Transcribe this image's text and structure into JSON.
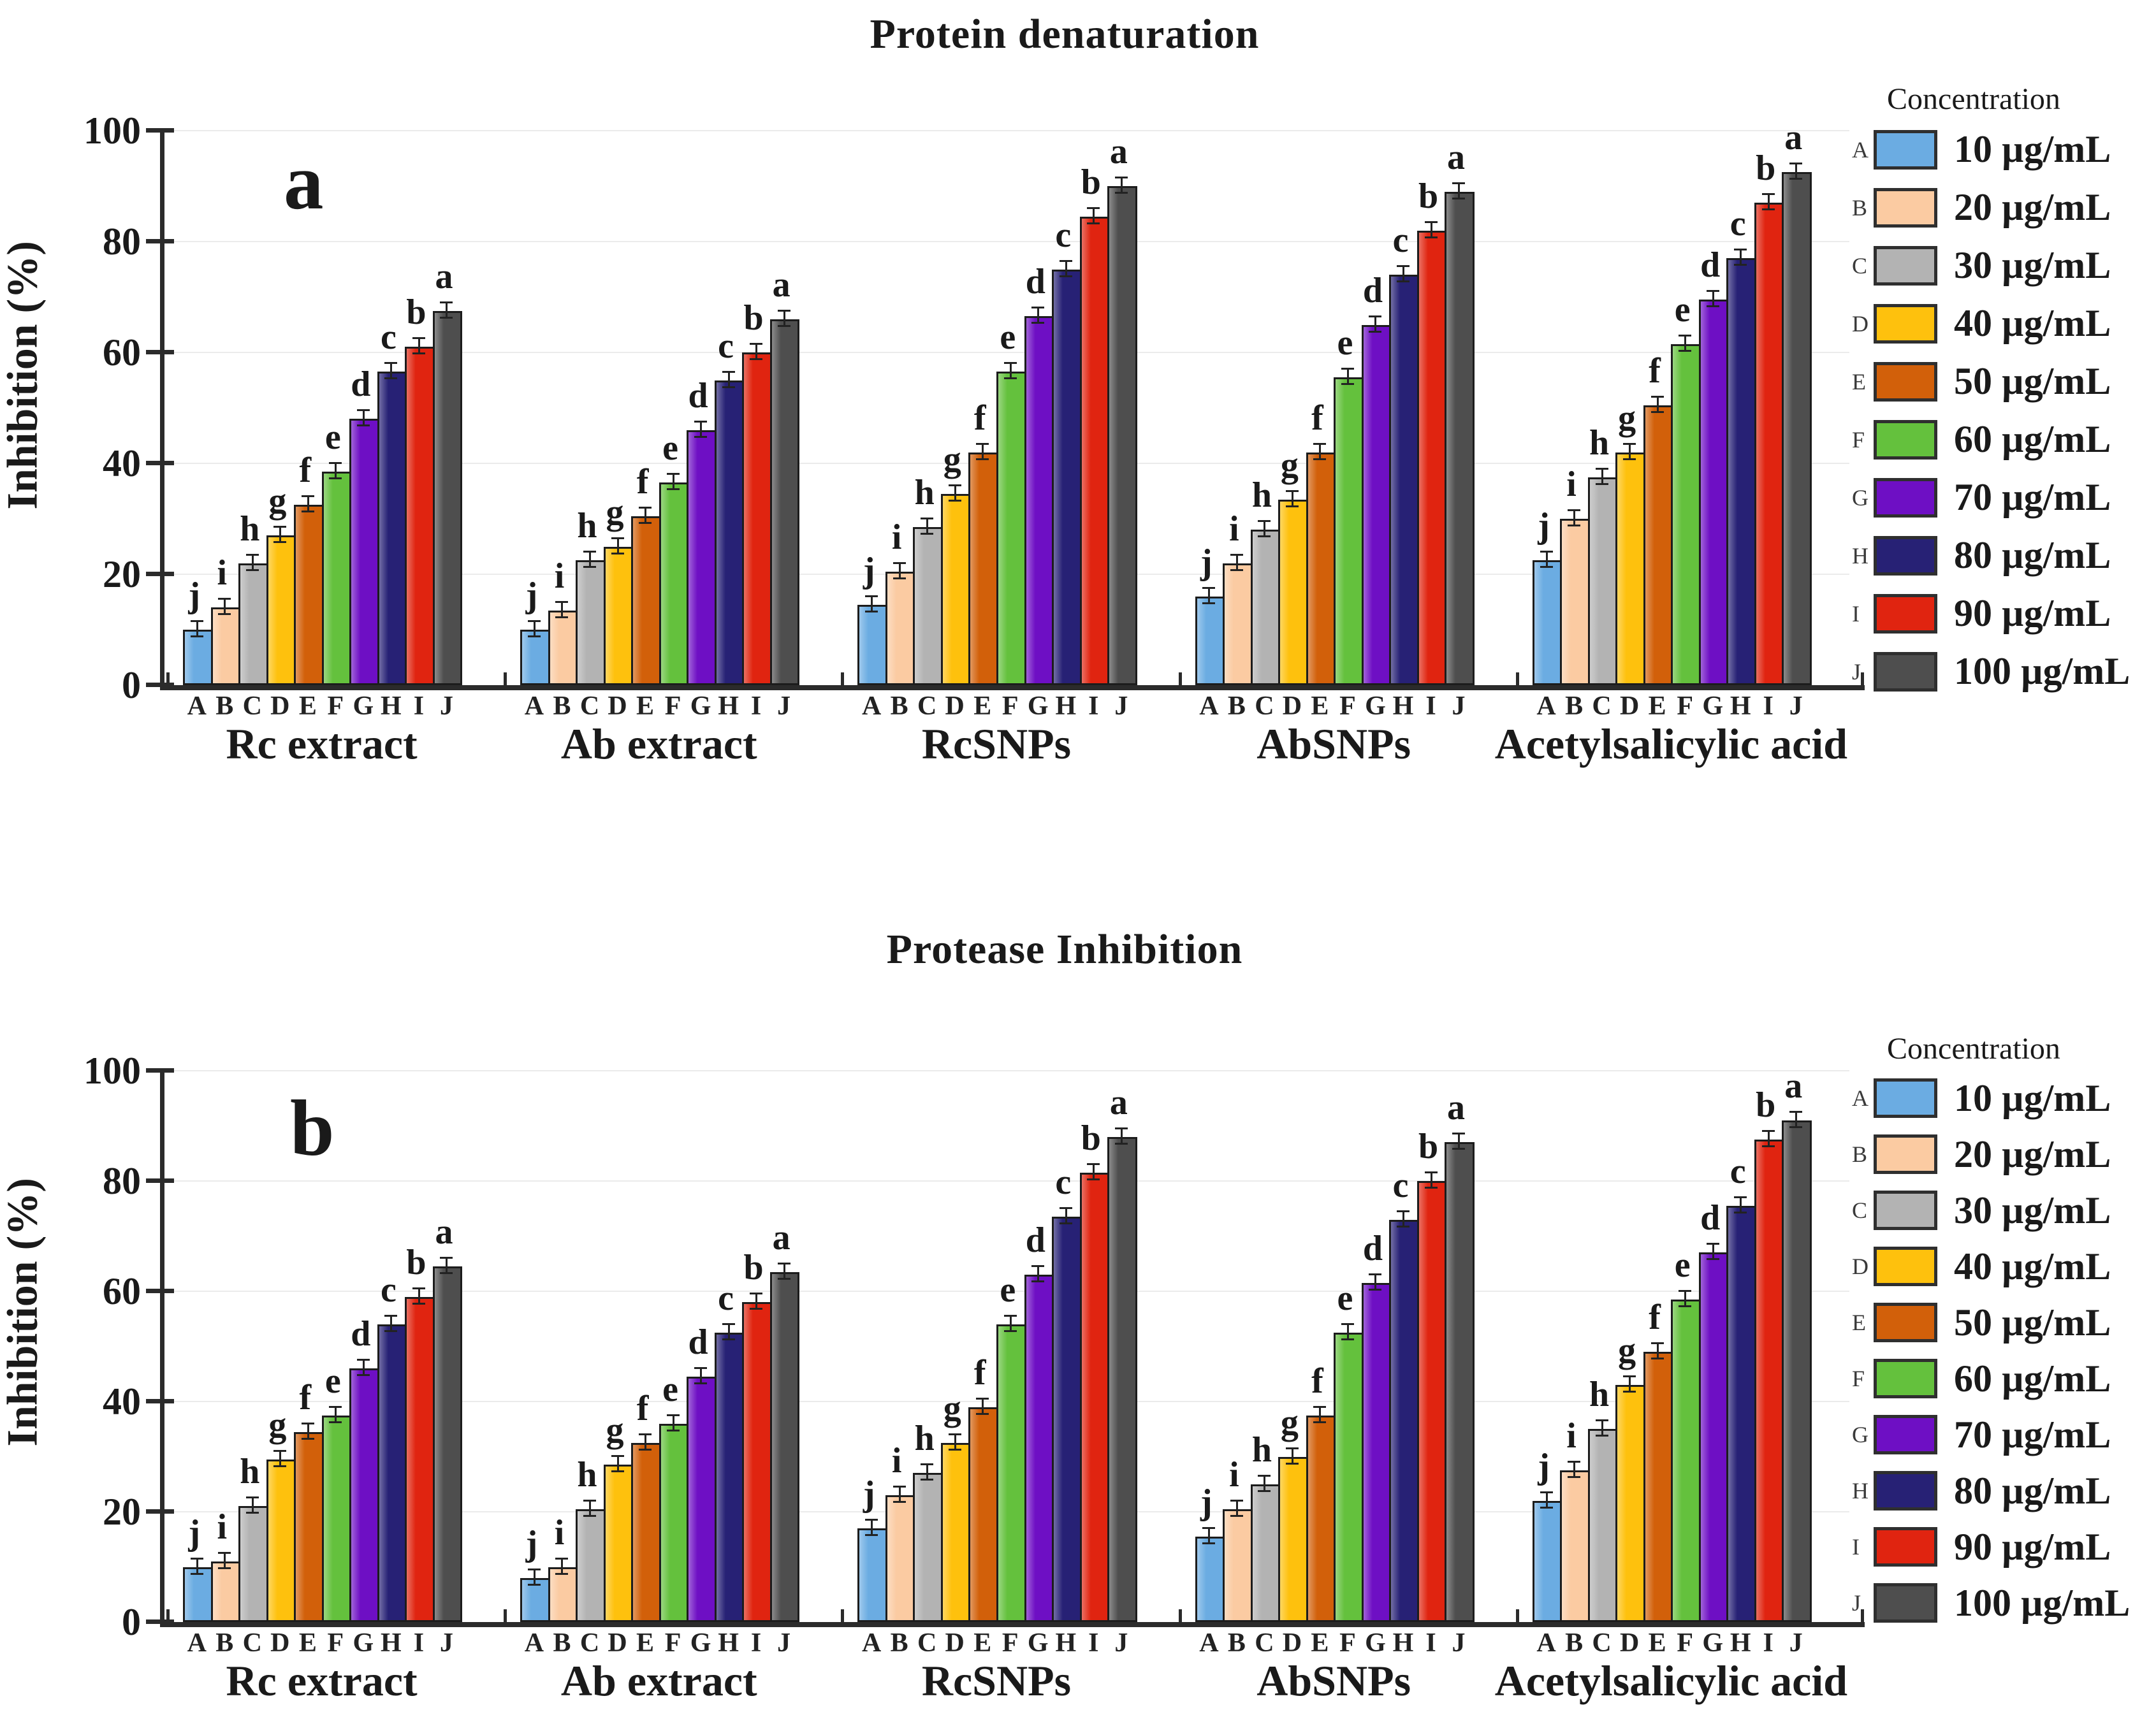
{
  "chart_data": [
    {
      "type": "bar",
      "panel_label": "a",
      "title": "Protein denaturation",
      "xlabel": "",
      "ylabel": "Inhibition (%)",
      "ylim": [
        0,
        100
      ],
      "yticks": [
        0,
        20,
        40,
        60,
        80,
        100
      ],
      "grid": "horizontal light gray",
      "legend_position": "right outside",
      "categories": [
        "Rc extract",
        "Ab extract",
        "RcSNPs",
        "AbSNPs",
        "Acetylsalicylic acid"
      ],
      "x_tick_letters": [
        "A",
        "B",
        "C",
        "D",
        "E",
        "F",
        "G",
        "H",
        "I",
        "J"
      ],
      "significance_letters_per_bar": [
        "j",
        "i",
        "h",
        "g",
        "f",
        "e",
        "d",
        "c",
        "b",
        "a"
      ],
      "error_bars_approx": 1,
      "series": [
        {
          "name": "10 µg/mL",
          "letter": "A",
          "color": "#6BACE2",
          "values": [
            10,
            10,
            14.5,
            16,
            22.5
          ]
        },
        {
          "name": "20 µg/mL",
          "letter": "B",
          "color": "#FBCBA2",
          "values": [
            14,
            13.5,
            20.5,
            22,
            30
          ]
        },
        {
          "name": "30 µg/mL",
          "letter": "C",
          "color": "#B3B3B3",
          "values": [
            22,
            22.5,
            28.5,
            28,
            37.5
          ]
        },
        {
          "name": "40 µg/mL",
          "letter": "D",
          "color": "#FEC10D",
          "values": [
            27,
            25,
            34.5,
            33.5,
            42
          ]
        },
        {
          "name": "50 µg/mL",
          "letter": "E",
          "color": "#D2600A",
          "values": [
            32.5,
            30.5,
            42,
            42,
            50.5
          ]
        },
        {
          "name": "60 µg/mL",
          "letter": "F",
          "color": "#64C13D",
          "values": [
            38.5,
            36.5,
            56.5,
            55.5,
            61.5
          ]
        },
        {
          "name": "70 µg/mL",
          "letter": "G",
          "color": "#6E0FC4",
          "values": [
            48,
            46,
            66.5,
            65,
            69.5
          ]
        },
        {
          "name": "80 µg/mL",
          "letter": "H",
          "color": "#272175",
          "values": [
            56.5,
            55,
            75,
            74,
            77
          ]
        },
        {
          "name": "90 µg/mL",
          "letter": "I",
          "color": "#E02410",
          "values": [
            61,
            60,
            84.5,
            82,
            87
          ]
        },
        {
          "name": "100 µg/mL",
          "letter": "J",
          "color": "#4E4E4E",
          "values": [
            67.5,
            66,
            90,
            89,
            92.5
          ]
        }
      ]
    },
    {
      "type": "bar",
      "panel_label": "b",
      "title": "Protease Inhibition",
      "xlabel": "",
      "ylabel": "Inhibition (%)",
      "ylim": [
        0,
        100
      ],
      "yticks": [
        0,
        20,
        40,
        60,
        80,
        100
      ],
      "grid": "horizontal light gray",
      "legend_position": "right outside",
      "categories": [
        "Rc extract",
        "Ab extract",
        "RcSNPs",
        "AbSNPs",
        "Acetylsalicylic acid"
      ],
      "x_tick_letters": [
        "A",
        "B",
        "C",
        "D",
        "E",
        "F",
        "G",
        "H",
        "I",
        "J"
      ],
      "significance_letters_per_bar": [
        "j",
        "i",
        "h",
        "g",
        "f",
        "e",
        "d",
        "c",
        "b",
        "a"
      ],
      "error_bars_approx": 1,
      "series": [
        {
          "name": "10 µg/mL",
          "letter": "A",
          "color": "#6BACE2",
          "values": [
            10,
            8,
            17,
            15.5,
            22
          ]
        },
        {
          "name": "20 µg/mL",
          "letter": "B",
          "color": "#FBCBA2",
          "values": [
            11,
            10,
            23,
            20.5,
            27.5
          ]
        },
        {
          "name": "30 µg/mL",
          "letter": "C",
          "color": "#B3B3B3",
          "values": [
            21,
            20.5,
            27,
            25,
            35
          ]
        },
        {
          "name": "40 µg/mL",
          "letter": "D",
          "color": "#FEC10D",
          "values": [
            29.5,
            28.5,
            32.5,
            30,
            43
          ]
        },
        {
          "name": "50 µg/mL",
          "letter": "E",
          "color": "#D2600A",
          "values": [
            34.5,
            32.5,
            39,
            37.5,
            49
          ]
        },
        {
          "name": "60 µg/mL",
          "letter": "F",
          "color": "#64C13D",
          "values": [
            37.5,
            36,
            54,
            52.5,
            58.5
          ]
        },
        {
          "name": "70 µg/mL",
          "letter": "G",
          "color": "#6E0FC4",
          "values": [
            46,
            44.5,
            63,
            61.5,
            67
          ]
        },
        {
          "name": "80 µg/mL",
          "letter": "H",
          "color": "#272175",
          "values": [
            54,
            52.5,
            73.5,
            73,
            75.5
          ]
        },
        {
          "name": "90 µg/mL",
          "letter": "I",
          "color": "#E02410",
          "values": [
            59,
            58,
            81.5,
            80,
            87.5
          ]
        },
        {
          "name": "100 µg/mL",
          "letter": "J",
          "color": "#4E4E4E",
          "values": [
            64.5,
            63.5,
            88,
            87,
            91
          ]
        }
      ]
    }
  ],
  "legend": {
    "title": "Concentration",
    "entries": [
      {
        "letter": "A",
        "label": "10 µg/mL",
        "color": "#6BACE2"
      },
      {
        "letter": "B",
        "label": "20 µg/mL",
        "color": "#FBCBA2"
      },
      {
        "letter": "C",
        "label": "30 µg/mL",
        "color": "#B3B3B3"
      },
      {
        "letter": "D",
        "label": "40 µg/mL",
        "color": "#FEC10D"
      },
      {
        "letter": "E",
        "label": "50 µg/mL",
        "color": "#D2600A"
      },
      {
        "letter": "F",
        "label": "60 µg/mL",
        "color": "#64C13D"
      },
      {
        "letter": "G",
        "label": "70 µg/mL",
        "color": "#6E0FC4"
      },
      {
        "letter": "H",
        "label": "80 µg/mL",
        "color": "#272175"
      },
      {
        "letter": "I",
        "label": "90 µg/mL",
        "color": "#E02410"
      },
      {
        "letter": "J",
        "label": "100 µg/mL",
        "color": "#4E4E4E"
      }
    ]
  }
}
